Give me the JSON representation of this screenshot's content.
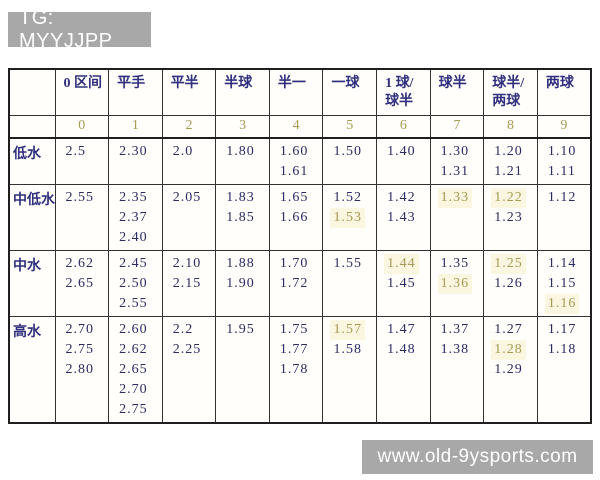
{
  "top_banner": {
    "text": "TG: MYYJJPP"
  },
  "bottom_banner": {
    "text": "www.old-9ysports.com"
  },
  "colors": {
    "banner_bg": "#a8a8a8",
    "banner_text": "#ffffff",
    "header_text": "#2f2f7d",
    "value_text": "#2b2b63",
    "highlight_text": "#a89a55",
    "highlight_bg": "#faf6e0",
    "border_dark": "#1f1f1f",
    "grid": "#333333",
    "table_bg": "#fffefb"
  },
  "chart_data": {
    "type": "table",
    "columns": [
      "",
      "0 区间",
      "平手",
      "平半",
      "半球",
      "半一",
      "一球",
      "1 球/\n球半",
      "球半",
      "球半/\n两球",
      "两球"
    ],
    "index_row": [
      "",
      "0",
      "1",
      "2",
      "3",
      "4",
      "5",
      "6",
      "7",
      "8",
      "9"
    ],
    "rows": [
      {
        "label": "低水",
        "cells": [
          [
            {
              "t": "2.5"
            }
          ],
          [
            {
              "t": "2.30"
            }
          ],
          [
            {
              "t": "2.0"
            }
          ],
          [
            {
              "t": "1.80"
            }
          ],
          [
            {
              "t": "1.60"
            },
            {
              "t": "1.61"
            }
          ],
          [
            {
              "t": "1.50"
            }
          ],
          [
            {
              "t": "1.40"
            }
          ],
          [
            {
              "t": "1.30"
            },
            {
              "t": "1.31"
            }
          ],
          [
            {
              "t": "1.20"
            },
            {
              "t": "1.21"
            }
          ],
          [
            {
              "t": "1.10"
            },
            {
              "t": "1.11"
            }
          ]
        ]
      },
      {
        "label": "中低水",
        "cells": [
          [
            {
              "t": "2.55"
            }
          ],
          [
            {
              "t": "2.35"
            },
            {
              "t": "2.37"
            },
            {
              "t": "2.40"
            }
          ],
          [
            {
              "t": "2.05"
            }
          ],
          [
            {
              "t": "1.83"
            },
            {
              "t": "1.85"
            }
          ],
          [
            {
              "t": "1.65"
            },
            {
              "t": "1.66"
            }
          ],
          [
            {
              "t": "1.52"
            },
            {
              "t": "1.53",
              "h": true
            }
          ],
          [
            {
              "t": "1.42"
            },
            {
              "t": "1.43"
            }
          ],
          [
            {
              "t": "1.33",
              "h": true
            }
          ],
          [
            {
              "t": "1.22",
              "h": true
            },
            {
              "t": "1.23"
            }
          ],
          [
            {
              "t": "1.12"
            }
          ]
        ]
      },
      {
        "label": "中水",
        "cells": [
          [
            {
              "t": "2.62"
            },
            {
              "t": "2.65"
            }
          ],
          [
            {
              "t": "2.45"
            },
            {
              "t": "2.50"
            },
            {
              "t": "2.55"
            }
          ],
          [
            {
              "t": "2.10"
            },
            {
              "t": "2.15"
            }
          ],
          [
            {
              "t": "1.88"
            },
            {
              "t": "1.90"
            }
          ],
          [
            {
              "t": "1.70"
            },
            {
              "t": "1.72"
            }
          ],
          [
            {
              "t": "1.55"
            }
          ],
          [
            {
              "t": "1.44",
              "h": true
            },
            {
              "t": "1.45"
            }
          ],
          [
            {
              "t": "1.35"
            },
            {
              "t": "1.36",
              "h": true
            }
          ],
          [
            {
              "t": "1.25",
              "h": true
            },
            {
              "t": "1.26"
            }
          ],
          [
            {
              "t": "1.14"
            },
            {
              "t": "1.15"
            },
            {
              "t": "1.16",
              "h": true
            }
          ]
        ]
      },
      {
        "label": "高水",
        "cells": [
          [
            {
              "t": "2.70"
            },
            {
              "t": "2.75"
            },
            {
              "t": "2.80"
            }
          ],
          [
            {
              "t": "2.60"
            },
            {
              "t": "2.62"
            },
            {
              "t": "2.65"
            },
            {
              "t": "2.70"
            },
            {
              "t": "2.75"
            }
          ],
          [
            {
              "t": "2.2"
            },
            {
              "t": "2.25"
            }
          ],
          [
            {
              "t": "1.95"
            }
          ],
          [
            {
              "t": "1.75"
            },
            {
              "t": "1.77"
            },
            {
              "t": "1.78"
            }
          ],
          [
            {
              "t": "1.57",
              "h": true
            },
            {
              "t": "1.58"
            }
          ],
          [
            {
              "t": "1.47"
            },
            {
              "t": "1.48"
            }
          ],
          [
            {
              "t": "1.37"
            },
            {
              "t": "1.38"
            }
          ],
          [
            {
              "t": "1.27"
            },
            {
              "t": "1.28",
              "h": true
            },
            {
              "t": "1.29"
            }
          ],
          [
            {
              "t": "1.17"
            },
            {
              "t": "1.18"
            }
          ]
        ]
      }
    ]
  }
}
